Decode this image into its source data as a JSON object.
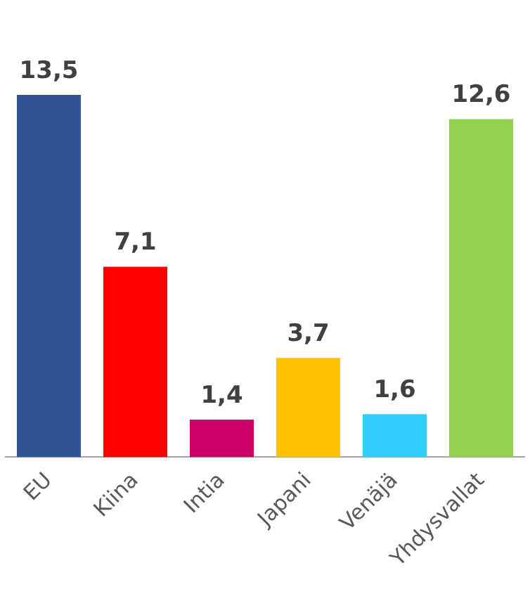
{
  "chart_data": {
    "type": "bar",
    "categories": [
      "EU",
      "Kiina",
      "Intia",
      "Japani",
      "Venäjä",
      "Yhdysvallat"
    ],
    "values": [
      13.5,
      7.1,
      1.4,
      3.7,
      1.6,
      12.6
    ],
    "colors": [
      "#2f5597",
      "#ff0000",
      "#cc0066",
      "#ffc000",
      "#33ccff",
      "#92d050"
    ],
    "value_labels": [
      "13,5",
      "7,1",
      "1,4",
      "3,7",
      "1,6",
      "12,6"
    ],
    "grid": false,
    "legend": false
  }
}
